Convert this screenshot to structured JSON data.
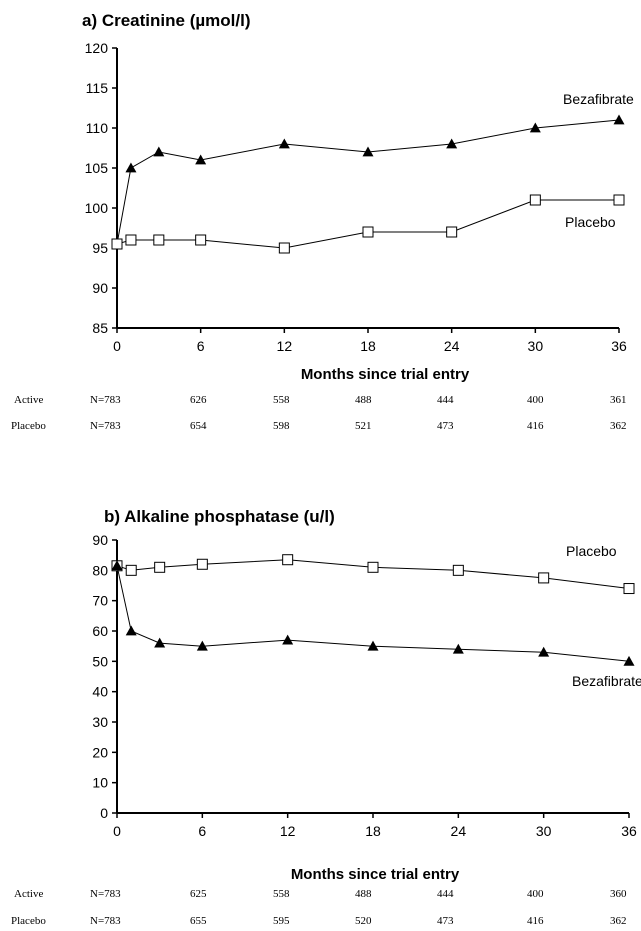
{
  "chart_data": [
    {
      "type": "line",
      "title": "a) Creatinine (µmol/l)",
      "xlabel": "Months since trial entry",
      "ylabel": "",
      "xlim": [
        0,
        36
      ],
      "ylim": [
        85,
        120
      ],
      "xticks": [
        0,
        6,
        12,
        18,
        24,
        30,
        36
      ],
      "yticks": [
        85,
        90,
        95,
        100,
        105,
        110,
        115,
        120
      ],
      "series": [
        {
          "name": "Bezafibrate",
          "marker": "filled-triangle",
          "color": "#000000",
          "x": [
            0,
            1,
            3,
            6,
            12,
            18,
            24,
            30,
            36
          ],
          "y": [
            95.5,
            105,
            107,
            106,
            108,
            107,
            108,
            110,
            111
          ]
        },
        {
          "name": "Placebo",
          "marker": "open-square",
          "color": "#000000",
          "x": [
            0,
            1,
            3,
            6,
            12,
            18,
            24,
            30,
            36
          ],
          "y": [
            95.5,
            96,
            96,
            96,
            95,
            97,
            97,
            101,
            101
          ]
        }
      ],
      "n_table": {
        "rows": [
          {
            "label": "Active",
            "values": [
              "N=783",
              "626",
              "558",
              "488",
              "444",
              "400",
              "361"
            ]
          },
          {
            "label": "Placebo",
            "values": [
              "N=783",
              "654",
              "598",
              "521",
              "473",
              "416",
              "362"
            ]
          }
        ]
      }
    },
    {
      "type": "line",
      "title": "b) Alkaline phosphatase (u/l)",
      "xlabel": "Months since trial entry",
      "ylabel": "",
      "xlim": [
        0,
        36
      ],
      "ylim": [
        0,
        90
      ],
      "xticks": [
        0,
        6,
        12,
        18,
        24,
        30,
        36
      ],
      "yticks": [
        0,
        10,
        20,
        30,
        40,
        50,
        60,
        70,
        80,
        90
      ],
      "series": [
        {
          "name": "Placebo",
          "marker": "open-square",
          "color": "#000000",
          "x": [
            0,
            1,
            3,
            6,
            12,
            18,
            24,
            30,
            36
          ],
          "y": [
            81.5,
            80,
            81,
            82,
            83.5,
            81,
            80,
            77.5,
            74
          ]
        },
        {
          "name": "Bezafibrate",
          "marker": "filled-triangle",
          "color": "#000000",
          "x": [
            0,
            1,
            3,
            6,
            12,
            18,
            24,
            30,
            36
          ],
          "y": [
            81.5,
            60,
            56,
            55,
            57,
            55,
            54,
            53,
            50
          ]
        }
      ],
      "n_table": {
        "rows": [
          {
            "label": "Active",
            "values": [
              "N=783",
              "625",
              "558",
              "488",
              "444",
              "400",
              "360"
            ]
          },
          {
            "label": "Placebo",
            "values": [
              "N=783",
              "655",
              "595",
              "520",
              "473",
              "416",
              "362"
            ]
          }
        ]
      }
    }
  ]
}
